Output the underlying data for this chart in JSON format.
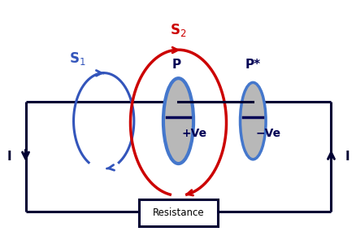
{
  "bg_color": "#ffffff",
  "circuit_color": "#000033",
  "blue_color": "#3355bb",
  "red_color": "#cc0000",
  "dark_blue": "#000055",
  "gray_plate": "#b8b8b8",
  "plate_edge": "#4477cc",
  "circuit_lw": 2.2,
  "s1_label": "S$_1$",
  "s2_label": "S$_2$",
  "p_label": "P",
  "pstar_label": "P*",
  "plus_ve": "+Ve",
  "minus_ve": "−Ve",
  "resistance_label": "Resistance",
  "current_label": "I",
  "fig_width": 4.39,
  "fig_height": 3.06,
  "xlim": [
    0,
    10
  ],
  "ylim": [
    0,
    7
  ]
}
